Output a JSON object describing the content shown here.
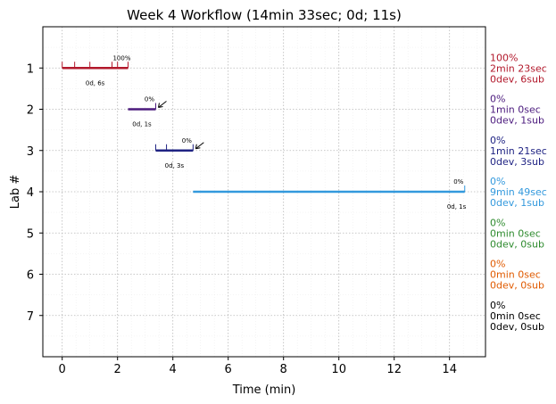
{
  "chart_data": {
    "type": "timeline",
    "title": "Week 4 Workflow (14min 33sec; 0d; 11s)",
    "xlabel": "Time (min)",
    "ylabel": "Lab #",
    "xlim": [
      -0.7,
      15.3
    ],
    "ylim": [
      8.0,
      0.0
    ],
    "xticks": [
      0,
      2,
      4,
      6,
      8,
      10,
      12,
      14
    ],
    "xtick_labels": [
      "0",
      "2",
      "4",
      "6",
      "8",
      "10",
      "12",
      "14"
    ],
    "yticks": [
      1,
      2,
      3,
      4,
      5,
      6,
      7
    ],
    "ytick_labels": [
      "1",
      "2",
      "3",
      "4",
      "5",
      "6",
      "7"
    ],
    "grid": true,
    "labs": [
      {
        "lab": 1,
        "start": 0.0,
        "end": 2.38,
        "color": "#b2182b",
        "submissions": [
          0.0,
          0.45,
          1.0,
          1.8,
          2.0,
          2.38
        ],
        "pct": "100%",
        "counts": "0d, 6s",
        "arrow": false,
        "side_lines": [
          "100%",
          "2min 23sec",
          "0dev, 6sub"
        ]
      },
      {
        "lab": 2,
        "start": 2.38,
        "end": 3.38,
        "color": "#4b1a7d",
        "submissions": [
          3.38
        ],
        "pct": "0%",
        "counts": "0d, 1s",
        "arrow": true,
        "side_lines": [
          "0%",
          "1min 0sec",
          "0dev, 1sub"
        ]
      },
      {
        "lab": 3,
        "start": 3.38,
        "end": 4.73,
        "color": "#1f2383",
        "submissions": [
          3.38,
          3.77,
          4.73
        ],
        "pct": "0%",
        "counts": "0d, 3s",
        "arrow": true,
        "side_lines": [
          "0%",
          "1min 21sec",
          "0dev, 3sub"
        ]
      },
      {
        "lab": 4,
        "start": 4.73,
        "end": 14.55,
        "color": "#3399dd",
        "submissions": [
          14.55
        ],
        "pct": "0%",
        "counts": "0d, 1s",
        "arrow": false,
        "side_lines": [
          "0%",
          "9min 49sec",
          "0dev, 1sub"
        ]
      },
      {
        "lab": 5,
        "color": "#2e8b2e",
        "side_lines": [
          "0%",
          "0min 0sec",
          "0dev, 0sub"
        ]
      },
      {
        "lab": 6,
        "color": "#e05a00",
        "side_lines": [
          "0%",
          "0min 0sec",
          "0dev, 0sub"
        ]
      },
      {
        "lab": 7,
        "color": "#000000",
        "side_lines": [
          "0%",
          "0min 0sec",
          "0dev, 0sub"
        ]
      }
    ]
  }
}
